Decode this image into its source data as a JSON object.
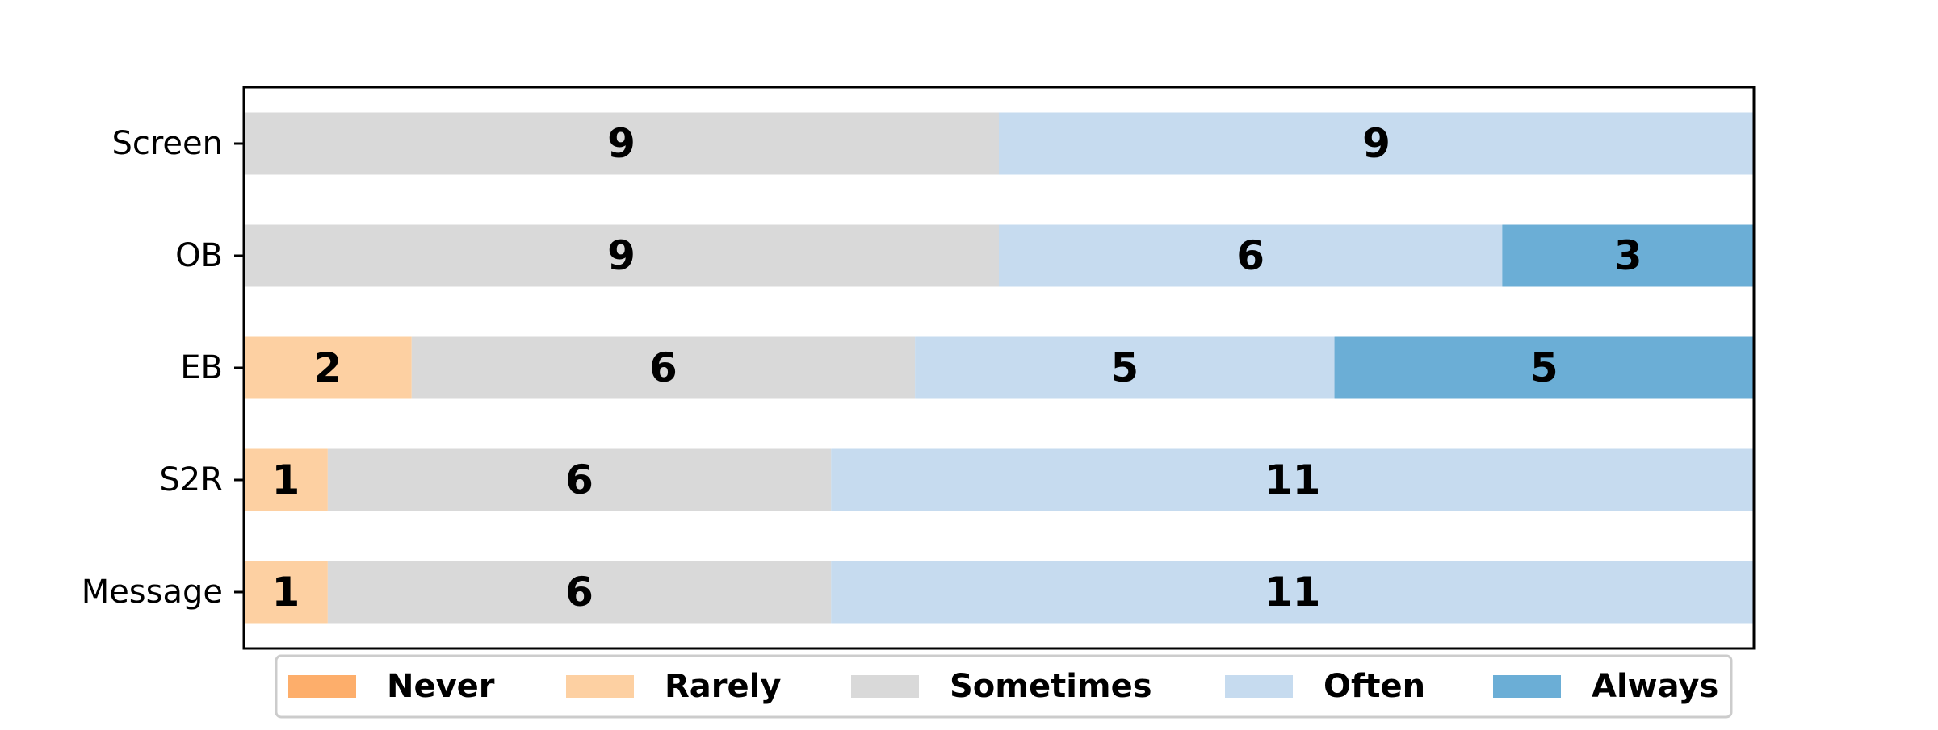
{
  "chart_data": {
    "type": "bar",
    "orientation": "horizontal",
    "stacked": true,
    "categories": [
      "Screen",
      "OB",
      "EB",
      "S2R",
      "Message"
    ],
    "series": [
      {
        "name": "Never",
        "color": "#fdae6b",
        "values": [
          0,
          0,
          0,
          0,
          0
        ]
      },
      {
        "name": "Rarely",
        "color": "#fdd0a2",
        "values": [
          0,
          0,
          2,
          1,
          1
        ]
      },
      {
        "name": "Sometimes",
        "color": "#d9d9d9",
        "values": [
          9,
          9,
          6,
          6,
          6
        ]
      },
      {
        "name": "Often",
        "color": "#c6dbef",
        "values": [
          9,
          6,
          5,
          11,
          11
        ]
      },
      {
        "name": "Always",
        "color": "#6baed6",
        "values": [
          0,
          3,
          5,
          0,
          0
        ]
      }
    ],
    "xlim": [
      0,
      18
    ],
    "title": "",
    "xlabel": "",
    "ylabel": "",
    "grid": false,
    "legend_position": "bottom"
  }
}
